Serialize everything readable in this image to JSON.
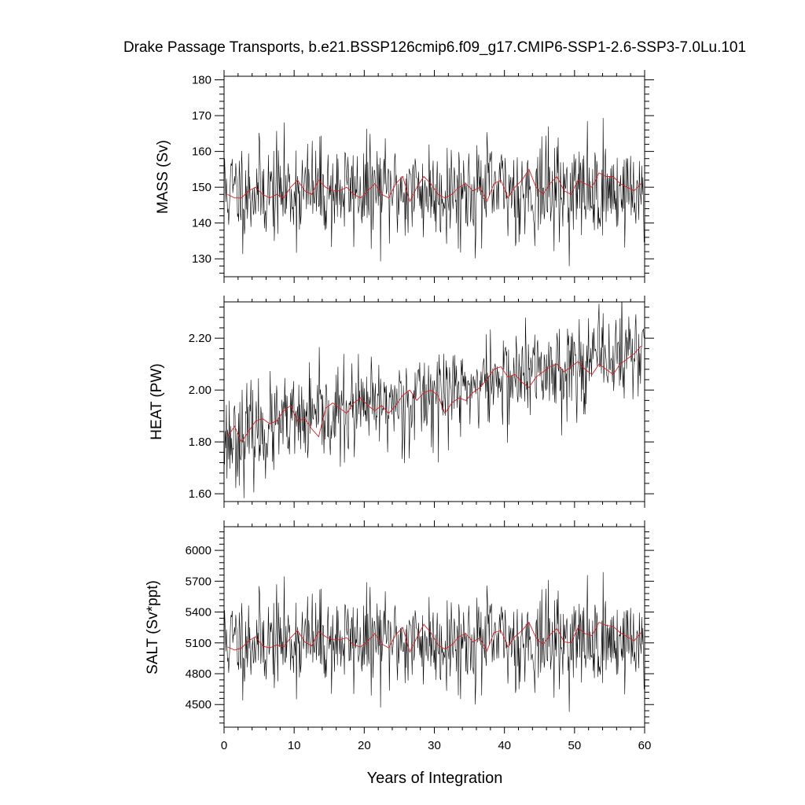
{
  "title": "Drake Passage Transports, b.e21.BSSP126cmip6.f09_g17.CMIP6-SSP1-2.6-SSP3-7.0Lu.101",
  "xlabel": "Years of Integration",
  "colors": {
    "raw": "#000000",
    "mean": "#e41a1c",
    "axis": "#000000"
  },
  "chart_data": [
    {
      "type": "line",
      "panel": "mass",
      "ylabel": "MASS (Sv)",
      "xlim": [
        0,
        60
      ],
      "ylim": [
        125,
        181
      ],
      "x_ticks": [
        0,
        10,
        20,
        30,
        40,
        50,
        60
      ],
      "x_tick_labels": [
        "",
        "",
        "",
        "",
        "",
        "",
        ""
      ],
      "y_ticks": [
        130,
        140,
        150,
        160,
        170,
        180
      ],
      "y_tick_labels": [
        "130",
        "140",
        "150",
        "160",
        "170",
        "180"
      ],
      "series": [
        {
          "role": "monthly",
          "color": "#000000",
          "start": 0,
          "step": 0.0833333,
          "count": 720,
          "mean": 149,
          "noise": 7,
          "trend": 0,
          "seed": 11
        },
        {
          "role": "annual-mean",
          "color": "#e41a1c",
          "x": [
            0.5,
            1.5,
            2.5,
            3.5,
            4.5,
            5.5,
            6.5,
            7.5,
            8.5,
            9.5,
            10.5,
            11.5,
            12.5,
            13.5,
            14.5,
            15.5,
            16.5,
            17.5,
            18.5,
            19.5,
            20.5,
            21.5,
            22.5,
            23.5,
            24.5,
            25.5,
            26.5,
            27.5,
            28.5,
            29.5,
            30.5,
            31.5,
            32.5,
            33.5,
            34.5,
            35.5,
            36.5,
            37.5,
            38.5,
            39.5,
            40.5,
            41.5,
            42.5,
            43.5,
            44.5,
            45.5,
            46.5,
            47.5,
            48.5,
            49.5,
            50.5,
            51.5,
            52.5,
            53.5,
            54.5,
            55.5,
            56.5,
            57.5,
            58.5,
            59.5
          ],
          "y": [
            148,
            147,
            147,
            149,
            150,
            148,
            147,
            148,
            147,
            150,
            152,
            149,
            148,
            152,
            150,
            149,
            149,
            150,
            148,
            147,
            149,
            151,
            148,
            147,
            151,
            153,
            146,
            150,
            153,
            151,
            148,
            147,
            148,
            150,
            151,
            149,
            150,
            146,
            151,
            152,
            147,
            150,
            152,
            155,
            150,
            148,
            151,
            153,
            149,
            148,
            152,
            151,
            150,
            154,
            153,
            153,
            151,
            150,
            149,
            151
          ]
        }
      ]
    },
    {
      "type": "line",
      "panel": "heat",
      "ylabel": "HEAT (PW)",
      "xlim": [
        0,
        60
      ],
      "ylim": [
        1.57,
        2.34
      ],
      "x_ticks": [
        0,
        10,
        20,
        30,
        40,
        50,
        60
      ],
      "x_tick_labels": [
        "",
        "",
        "",
        "",
        "",
        "",
        ""
      ],
      "y_ticks": [
        1.6,
        1.8,
        2.0,
        2.2
      ],
      "y_tick_labels": [
        "1.60",
        "1.80",
        "2.00",
        "2.20"
      ],
      "series": [
        {
          "role": "monthly",
          "color": "#000000",
          "start": 0,
          "step": 0.0833333,
          "count": 720,
          "mean": 1.81,
          "noise": 0.09,
          "trend": 0.0058,
          "seed": 23
        },
        {
          "role": "annual-mean",
          "color": "#e41a1c",
          "x": [
            0.5,
            1.5,
            2.5,
            3.5,
            4.5,
            5.5,
            6.5,
            7.5,
            8.5,
            9.5,
            10.5,
            11.5,
            12.5,
            13.5,
            14.5,
            15.5,
            16.5,
            17.5,
            18.5,
            19.5,
            20.5,
            21.5,
            22.5,
            23.5,
            24.5,
            25.5,
            26.5,
            27.5,
            28.5,
            29.5,
            30.5,
            31.5,
            32.5,
            33.5,
            34.5,
            35.5,
            36.5,
            37.5,
            38.5,
            39.5,
            40.5,
            41.5,
            42.5,
            43.5,
            44.5,
            45.5,
            46.5,
            47.5,
            48.5,
            49.5,
            50.5,
            51.5,
            52.5,
            53.5,
            54.5,
            55.5,
            56.5,
            57.5,
            58.5,
            59.5
          ],
          "y": [
            1.82,
            1.86,
            1.8,
            1.84,
            1.88,
            1.89,
            1.87,
            1.88,
            1.92,
            1.94,
            1.88,
            1.89,
            1.85,
            1.82,
            1.93,
            1.95,
            1.93,
            1.91,
            1.95,
            1.97,
            1.94,
            1.92,
            1.94,
            1.91,
            1.94,
            1.98,
            2.0,
            1.96,
            1.99,
            2.0,
            1.98,
            1.91,
            1.95,
            1.97,
            1.96,
            1.99,
            2.01,
            2.04,
            2.08,
            2.09,
            2.05,
            2.06,
            2.03,
            2.01,
            2.05,
            2.07,
            2.09,
            2.1,
            2.07,
            2.09,
            2.11,
            2.08,
            2.06,
            2.1,
            2.08,
            2.06,
            2.1,
            2.12,
            2.14,
            2.17
          ]
        }
      ]
    },
    {
      "type": "line",
      "panel": "salt",
      "ylabel": "SALT (Sv*ppt)",
      "xlim": [
        0,
        60
      ],
      "ylim": [
        4280,
        6230
      ],
      "x_ticks": [
        0,
        10,
        20,
        30,
        40,
        50,
        60
      ],
      "x_tick_labels": [
        "0",
        "10",
        "20",
        "30",
        "40",
        "50",
        "60"
      ],
      "y_ticks": [
        4500,
        4800,
        5100,
        5400,
        5700,
        6000
      ],
      "y_tick_labels": [
        "4500",
        "4800",
        "5100",
        "5400",
        "5700",
        "6000"
      ],
      "series": [
        {
          "role": "monthly",
          "color": "#000000",
          "start": 0,
          "step": 0.0833333,
          "count": 720,
          "mean": 5120,
          "noise": 230,
          "trend": 0,
          "seed": 11
        },
        {
          "role": "annual-mean",
          "color": "#e41a1c",
          "x": [
            0.5,
            1.5,
            2.5,
            3.5,
            4.5,
            5.5,
            6.5,
            7.5,
            8.5,
            9.5,
            10.5,
            11.5,
            12.5,
            13.5,
            14.5,
            15.5,
            16.5,
            17.5,
            18.5,
            19.5,
            20.5,
            21.5,
            22.5,
            23.5,
            24.5,
            25.5,
            26.5,
            27.5,
            28.5,
            29.5,
            30.5,
            31.5,
            32.5,
            33.5,
            34.5,
            35.5,
            36.5,
            37.5,
            38.5,
            39.5,
            40.5,
            41.5,
            42.5,
            43.5,
            44.5,
            45.5,
            46.5,
            47.5,
            48.5,
            49.5,
            50.5,
            51.5,
            52.5,
            53.5,
            54.5,
            55.5,
            56.5,
            57.5,
            58.5,
            59.5
          ],
          "y": [
            5060,
            5030,
            5050,
            5120,
            5160,
            5070,
            5050,
            5080,
            5060,
            5150,
            5220,
            5110,
            5070,
            5210,
            5160,
            5130,
            5130,
            5150,
            5080,
            5060,
            5120,
            5190,
            5090,
            5050,
            5180,
            5250,
            5010,
            5150,
            5280,
            5200,
            5080,
            5040,
            5080,
            5160,
            5190,
            5110,
            5150,
            5020,
            5200,
            5220,
            5060,
            5160,
            5220,
            5300,
            5150,
            5080,
            5180,
            5240,
            5110,
            5100,
            5250,
            5190,
            5170,
            5300,
            5270,
            5260,
            5200,
            5160,
            5120,
            5200
          ]
        }
      ]
    }
  ]
}
